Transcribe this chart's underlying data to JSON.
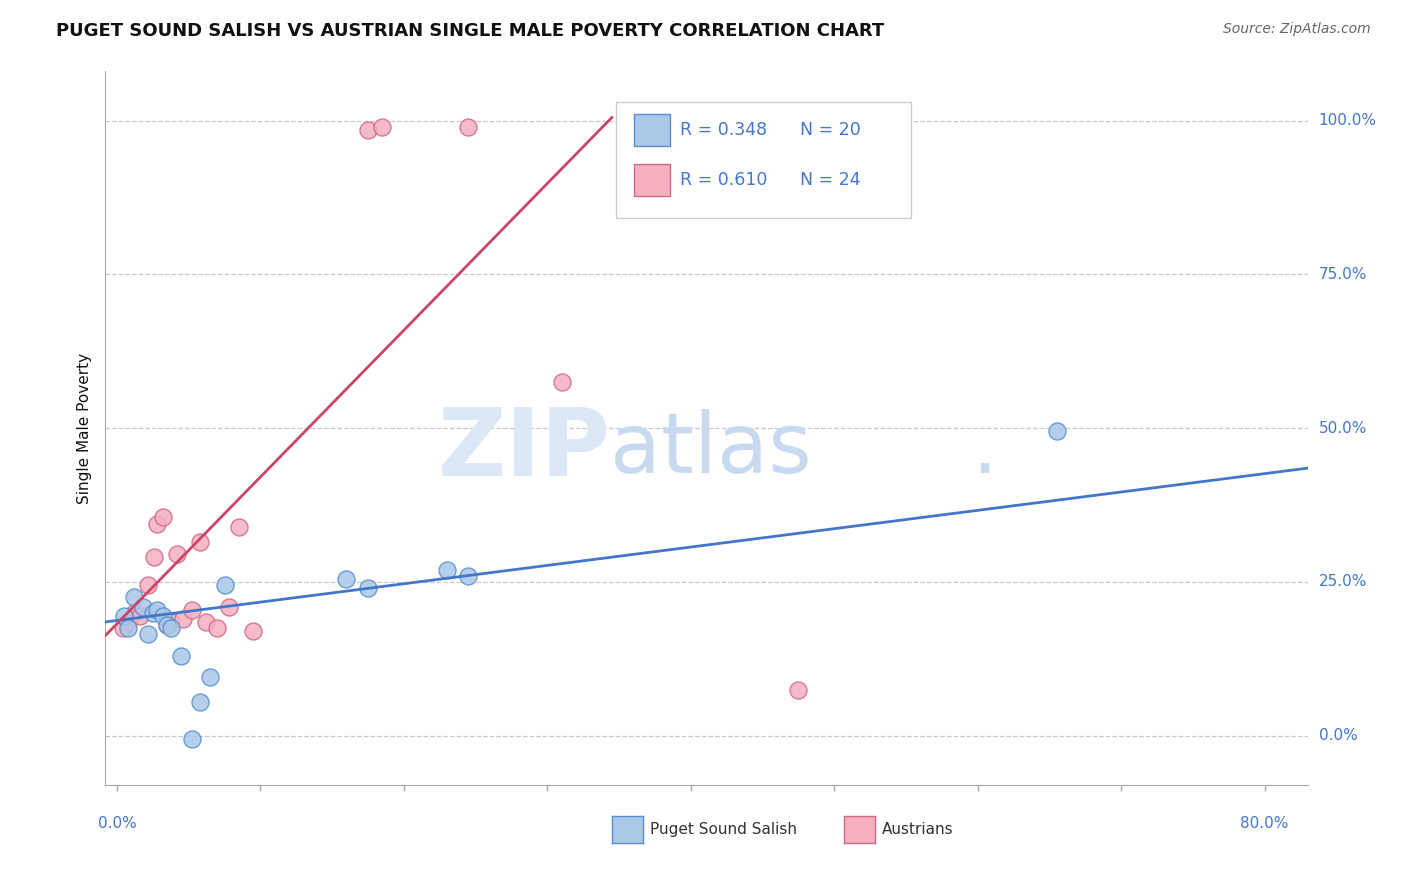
{
  "title": "PUGET SOUND SALISH VS AUSTRIAN SINGLE MALE POVERTY CORRELATION CHART",
  "source": "Source: ZipAtlas.com",
  "ylabel": "Single Male Poverty",
  "xlim": [
    -0.008,
    0.83
  ],
  "ylim": [
    -0.08,
    1.08
  ],
  "ytick_values": [
    0.0,
    0.25,
    0.5,
    0.75,
    1.0
  ],
  "xtick_values": [
    0.0,
    0.1,
    0.2,
    0.3,
    0.4,
    0.5,
    0.6,
    0.7,
    0.8
  ],
  "grid_color": "#c8c8c8",
  "background_color": "#ffffff",
  "blue_fill": "#aac8e8",
  "pink_fill": "#f5b0c0",
  "blue_edge": "#5590cc",
  "pink_edge": "#d06888",
  "blue_line_color": "#4477cc",
  "pink_line_color": "#cc4466",
  "legend_R1": "R = 0.348",
  "legend_N1": "N = 20",
  "legend_R2": "R = 0.610",
  "legend_N2": "N = 24",
  "legend_label1": "Puget Sound Salish",
  "legend_label2": "Austrians",
  "text_color_blue": "#4477cc",
  "text_color_dark": "#111111",
  "text_color_source": "#666666",
  "blue_x": [
    0.005,
    0.008,
    0.012,
    0.018,
    0.022,
    0.025,
    0.028,
    0.032,
    0.035,
    0.038,
    0.045,
    0.052,
    0.058,
    0.065,
    0.075,
    0.16,
    0.175,
    0.23,
    0.245,
    0.655
  ],
  "blue_y": [
    0.195,
    0.175,
    0.225,
    0.21,
    0.165,
    0.2,
    0.205,
    0.195,
    0.18,
    0.175,
    0.13,
    -0.005,
    0.055,
    0.095,
    0.245,
    0.255,
    0.24,
    0.27,
    0.26,
    0.495
  ],
  "pink_x": [
    0.004,
    0.008,
    0.012,
    0.016,
    0.022,
    0.026,
    0.028,
    0.032,
    0.035,
    0.038,
    0.042,
    0.046,
    0.052,
    0.058,
    0.062,
    0.07,
    0.078,
    0.085,
    0.095,
    0.175,
    0.185,
    0.245,
    0.31,
    0.475
  ],
  "pink_y": [
    0.175,
    0.185,
    0.2,
    0.195,
    0.245,
    0.29,
    0.345,
    0.355,
    0.18,
    0.185,
    0.295,
    0.19,
    0.205,
    0.315,
    0.185,
    0.175,
    0.21,
    0.34,
    0.17,
    0.985,
    0.99,
    0.99,
    0.575,
    0.075
  ],
  "blue_trend_x0": -0.008,
  "blue_trend_x1": 0.83,
  "blue_trend_y0": 0.185,
  "blue_trend_y1": 0.435,
  "pink_trend_x0": -0.008,
  "pink_trend_x1": 0.345,
  "pink_trend_y0": 0.163,
  "pink_trend_y1": 1.005,
  "watermark_zip": "ZIP",
  "watermark_atlas": "atlas",
  "watermark_dot": ".",
  "title_fontsize": 13,
  "label_fontsize": 11,
  "tick_fontsize": 11,
  "legend_fontsize": 12.5
}
